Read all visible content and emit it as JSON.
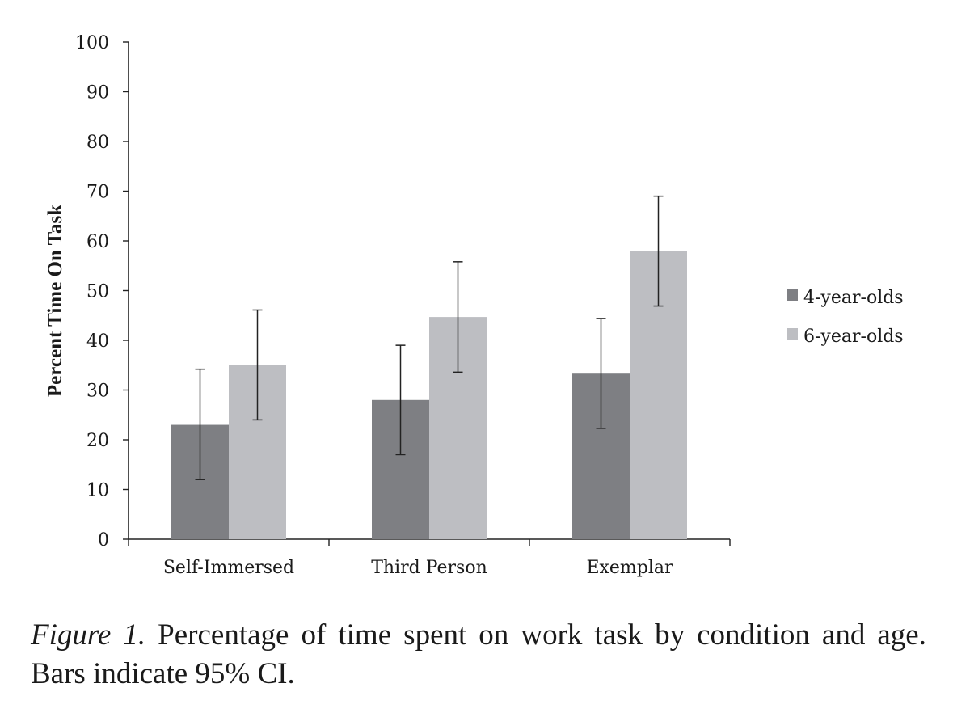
{
  "chart_data": {
    "type": "bar",
    "categories": [
      "Self-Immersed",
      "Third Person",
      "Exemplar"
    ],
    "ylabel": "Percent Time On Task",
    "ylim": [
      0,
      100
    ],
    "yticks": [
      "0",
      "10",
      "20",
      "30",
      "40",
      "50",
      "60",
      "70",
      "80",
      "90",
      "100"
    ],
    "grid": false,
    "legend_position": "right",
    "series": [
      {
        "name": "4-year-olds",
        "color": "#7e7f83",
        "values": [
          23,
          28,
          33.3
        ],
        "ci_low": [
          12,
          17,
          22.3
        ],
        "ci_high": [
          34.2,
          39,
          44.4
        ]
      },
      {
        "name": "6-year-olds",
        "color": "#bdbec2",
        "values": [
          35,
          44.7,
          57.9
        ],
        "ci_low": [
          24,
          33.6,
          46.9
        ],
        "ci_high": [
          46.1,
          55.8,
          69
        ]
      }
    ]
  },
  "caption": {
    "label": "Figure 1.",
    "text": " Percentage of time spent on work task by condition and age. Bars indicate 95% CI."
  }
}
